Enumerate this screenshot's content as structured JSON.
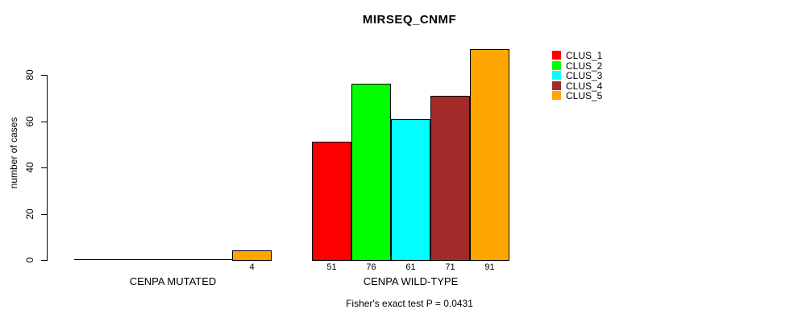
{
  "page": {
    "background": "#ffffff",
    "axis_color": "#000000",
    "text_color": "#000000"
  },
  "chart_data": {
    "type": "bar",
    "title": "MIRSEQ_CNMF",
    "ylabel": "number of cases",
    "xlabel": "",
    "annotation": "Fisher's exact test P = 0.0431",
    "categories": [
      "CENPA MUTATED",
      "CENPA WILD-TYPE"
    ],
    "series": [
      {
        "name": "CLUS_1",
        "color": "#ff0000",
        "values": [
          0,
          51
        ]
      },
      {
        "name": "CLUS_2",
        "color": "#00ff00",
        "values": [
          0,
          76
        ]
      },
      {
        "name": "CLUS_3",
        "color": "#00ffff",
        "values": [
          0,
          61
        ]
      },
      {
        "name": "CLUS_4",
        "color": "#a52a2a",
        "values": [
          0,
          71
        ]
      },
      {
        "name": "CLUS_5",
        "color": "#ffa500",
        "values": [
          4,
          91
        ]
      }
    ],
    "value_labels": [
      [
        "",
        "",
        "",
        "",
        "4"
      ],
      [
        "51",
        "76",
        "61",
        "71",
        "91"
      ]
    ],
    "yticks": [
      0,
      20,
      40,
      60,
      80
    ],
    "ylim": [
      0,
      80
    ],
    "grid": false,
    "legend_position": "right",
    "legend": [
      "CLUS_1",
      "CLUS_2",
      "CLUS_3",
      "CLUS_4",
      "CLUS_5"
    ]
  }
}
